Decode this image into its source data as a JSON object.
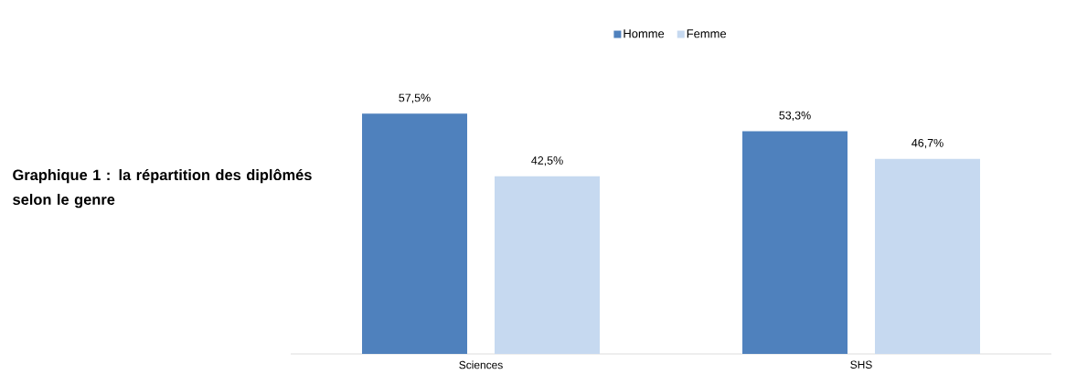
{
  "chart_data": {
    "type": "bar",
    "title": "Graphique 1 : la répartition des diplômés selon le genre",
    "categories": [
      "Sciences",
      "SHS"
    ],
    "series": [
      {
        "name": "Homme",
        "color": "#4f81bd",
        "values": [
          57.5,
          53.3
        ],
        "value_labels": [
          "57,5%",
          "53,3%"
        ]
      },
      {
        "name": "Femme",
        "color": "#c6d9f0",
        "values": [
          42.5,
          46.7
        ],
        "value_labels": [
          "42,5%",
          "46,7%"
        ]
      }
    ],
    "legend": "top"
  }
}
